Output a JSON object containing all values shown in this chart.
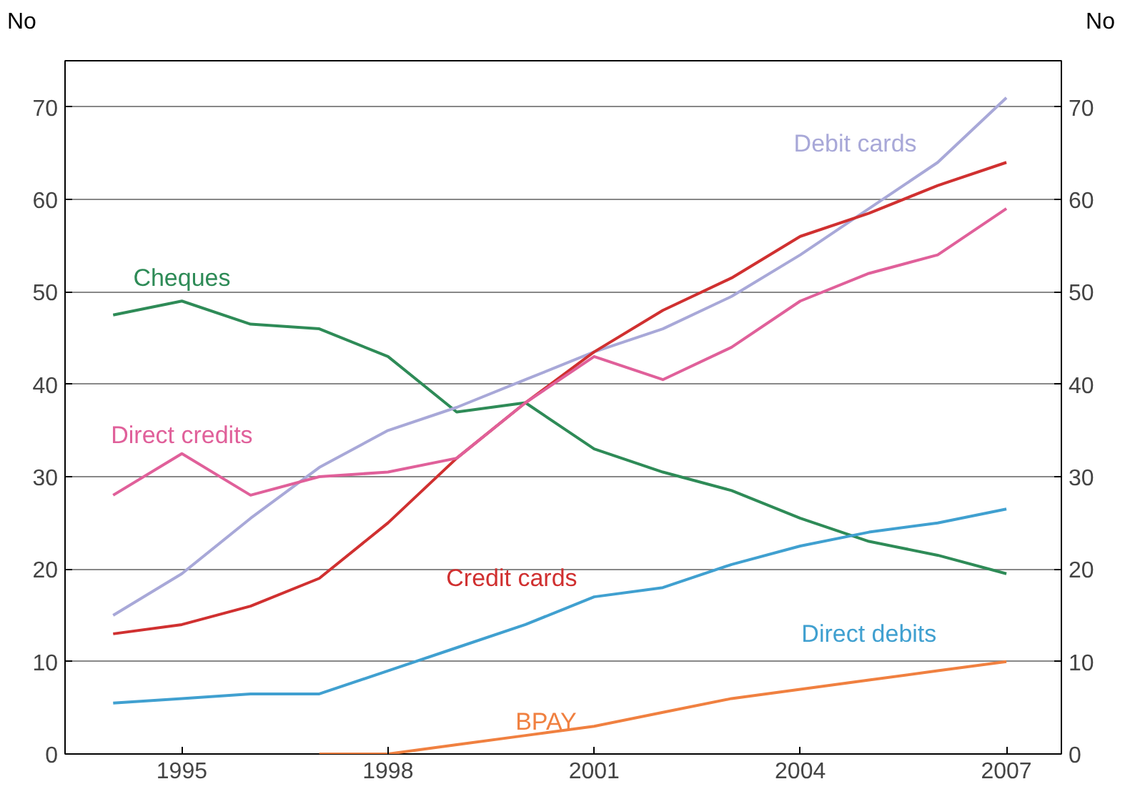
{
  "chart_data": {
    "type": "line",
    "ylabel": "No",
    "y2label": "No",
    "x": [
      1994,
      1995,
      1996,
      1997,
      1998,
      1999,
      2000,
      2001,
      2002,
      2003,
      2004,
      2005,
      2006,
      2007
    ],
    "series": [
      {
        "name": "Cheques",
        "color": "#2e8b57",
        "values": [
          47.5,
          49,
          46.5,
          46,
          43,
          37,
          38,
          33,
          30.5,
          28.5,
          25.5,
          23,
          21.5,
          19.5
        ]
      },
      {
        "name": "Debit cards",
        "color": "#a8a8d8",
        "values": [
          15,
          19.5,
          25.5,
          31,
          35,
          37.5,
          40.5,
          43.5,
          46,
          49.5,
          54,
          59,
          64,
          71
        ]
      },
      {
        "name": "Credit cards",
        "color": "#d03030",
        "values": [
          13,
          14,
          16,
          19,
          25,
          32,
          38,
          43.5,
          48,
          51.5,
          56,
          58.5,
          61.5,
          64
        ]
      },
      {
        "name": "Direct credits",
        "color": "#e0609a",
        "values": [
          28,
          32.5,
          28,
          30,
          30.5,
          32,
          38,
          43,
          40.5,
          44,
          49,
          52,
          54,
          59
        ]
      },
      {
        "name": "Direct debits",
        "color": "#40a0d0",
        "values": [
          5.5,
          6,
          6.5,
          6.5,
          9,
          11.5,
          14,
          17,
          18,
          20.5,
          22.5,
          24,
          25,
          26.5
        ]
      },
      {
        "name": "BPAY",
        "color": "#f08040",
        "values": [
          null,
          null,
          null,
          0,
          0,
          1,
          2,
          3,
          4.5,
          6,
          7,
          8,
          9,
          10
        ]
      }
    ],
    "xlim": [
      1993.3,
      2007.8
    ],
    "ylim": [
      0,
      75
    ],
    "y2lim": [
      0,
      75
    ],
    "xticks": [
      1995,
      1998,
      2001,
      2004,
      2007
    ],
    "yticks": [
      0,
      10,
      20,
      30,
      40,
      50,
      60,
      70
    ],
    "y2ticks": [
      0,
      10,
      20,
      30,
      40,
      50,
      60,
      70
    ],
    "grid": "y",
    "legend": false,
    "marker": "none",
    "line_style": "solid"
  }
}
